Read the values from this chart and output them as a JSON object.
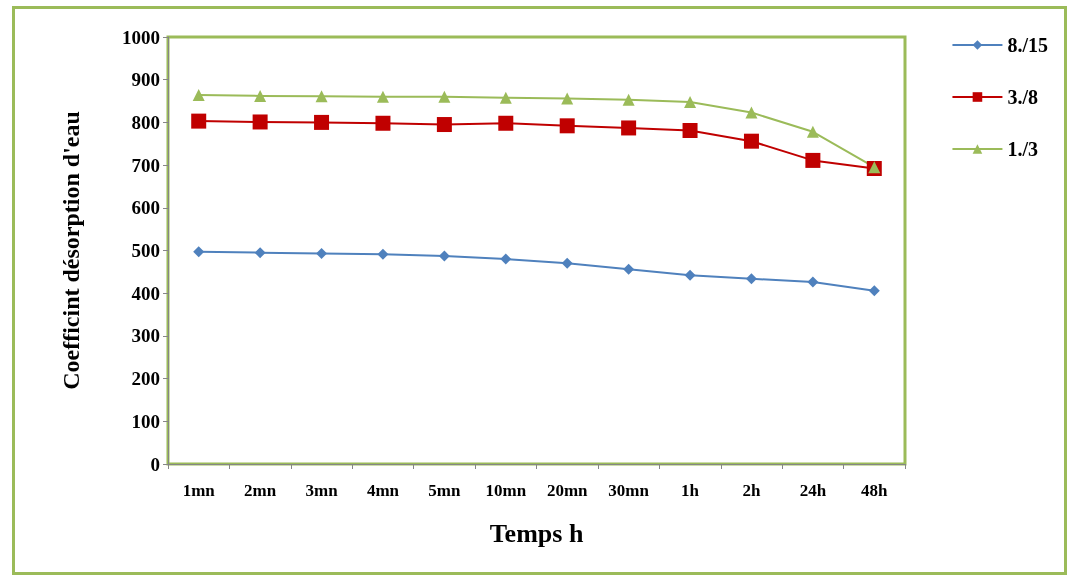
{
  "chart_data": {
    "type": "line",
    "xlabel": "Temps h",
    "ylabel": "Coefficint désorption d'eau",
    "categories": [
      "1mn",
      "2mn",
      "3mn",
      "4mn",
      "5mn",
      "10mn",
      "20mn",
      "30mn",
      "1h",
      "2h",
      "24h",
      "48h"
    ],
    "series": [
      {
        "name": "8./15",
        "color": "#4f81bd",
        "marker": "diamond",
        "values": [
          497,
          495,
          493,
          491,
          487,
          480,
          470,
          456,
          442,
          434,
          426,
          406
        ]
      },
      {
        "name": "3./8",
        "color": "#c00000",
        "marker": "square",
        "values": [
          803,
          801,
          800,
          798,
          795,
          798,
          792,
          787,
          781,
          756,
          711,
          692
        ]
      },
      {
        "name": "1./3",
        "color": "#9bbb59",
        "marker": "triangle",
        "values": [
          864,
          862,
          861,
          860,
          860,
          858,
          856,
          853,
          848,
          823,
          778,
          695
        ]
      }
    ],
    "ylim": [
      0,
      1000
    ],
    "yticks": [
      0,
      100,
      200,
      300,
      400,
      500,
      600,
      700,
      800,
      900,
      1000
    ],
    "grid": false,
    "legend": "right"
  }
}
